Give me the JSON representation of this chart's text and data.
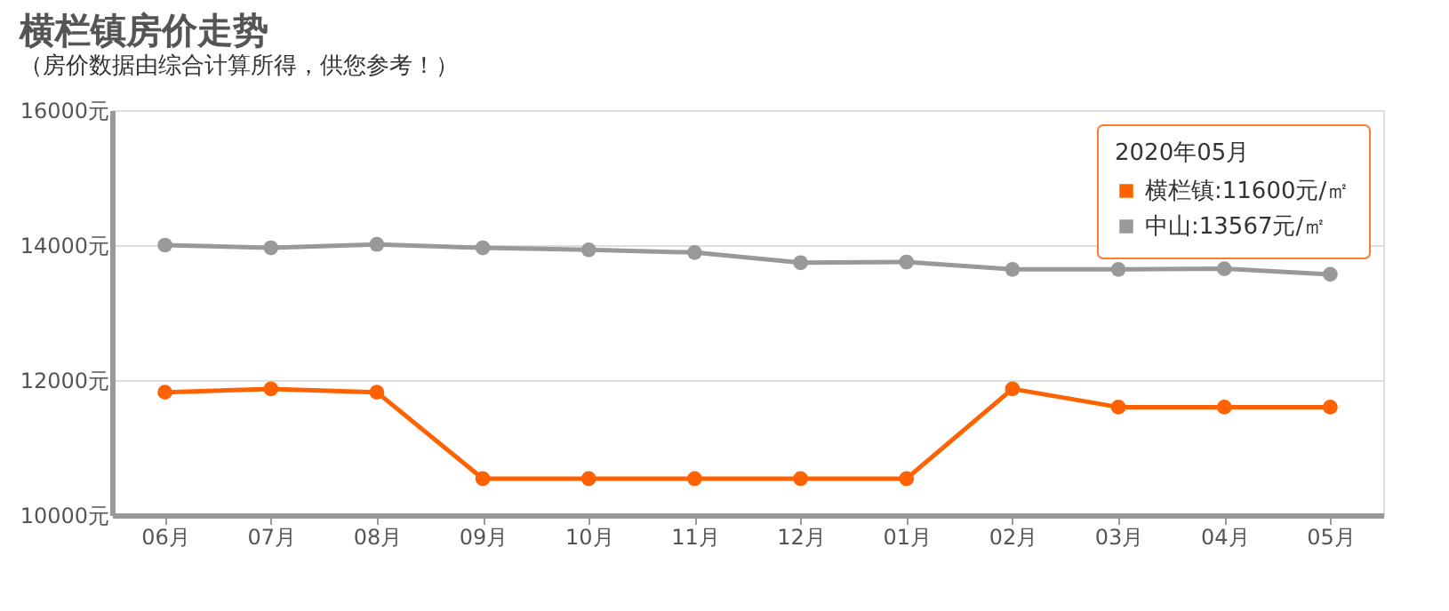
{
  "chart_data": {
    "type": "line",
    "title": "横栏镇房价走势",
    "subtitle": "（房价数据由综合计算所得，供您参考！）",
    "categories": [
      "06月",
      "07月",
      "08月",
      "09月",
      "10月",
      "11月",
      "12月",
      "01月",
      "02月",
      "03月",
      "04月",
      "05月"
    ],
    "series": [
      {
        "name": "横栏镇:11600元/㎡",
        "color": "#ff6200",
        "values": [
          11820,
          11870,
          11820,
          10540,
          10540,
          10540,
          10540,
          10540,
          11870,
          11600,
          11600,
          11600
        ]
      },
      {
        "name": "中山:13567元/㎡",
        "color": "#999999",
        "values": [
          14000,
          13960,
          14010,
          13960,
          13930,
          13890,
          13740,
          13750,
          13640,
          13640,
          13650,
          13567
        ]
      }
    ],
    "ylim": [
      10000,
      16000
    ],
    "yticks": [
      {
        "value": 10000,
        "label": "10000元"
      },
      {
        "value": 12000,
        "label": "12000元"
      },
      {
        "value": 14000,
        "label": "14000元"
      },
      {
        "value": 16000,
        "label": "16000元"
      }
    ],
    "grid": "y",
    "marker": "circle",
    "line_style": "solid",
    "legend": "top right",
    "legend_title": "2020年05月"
  }
}
